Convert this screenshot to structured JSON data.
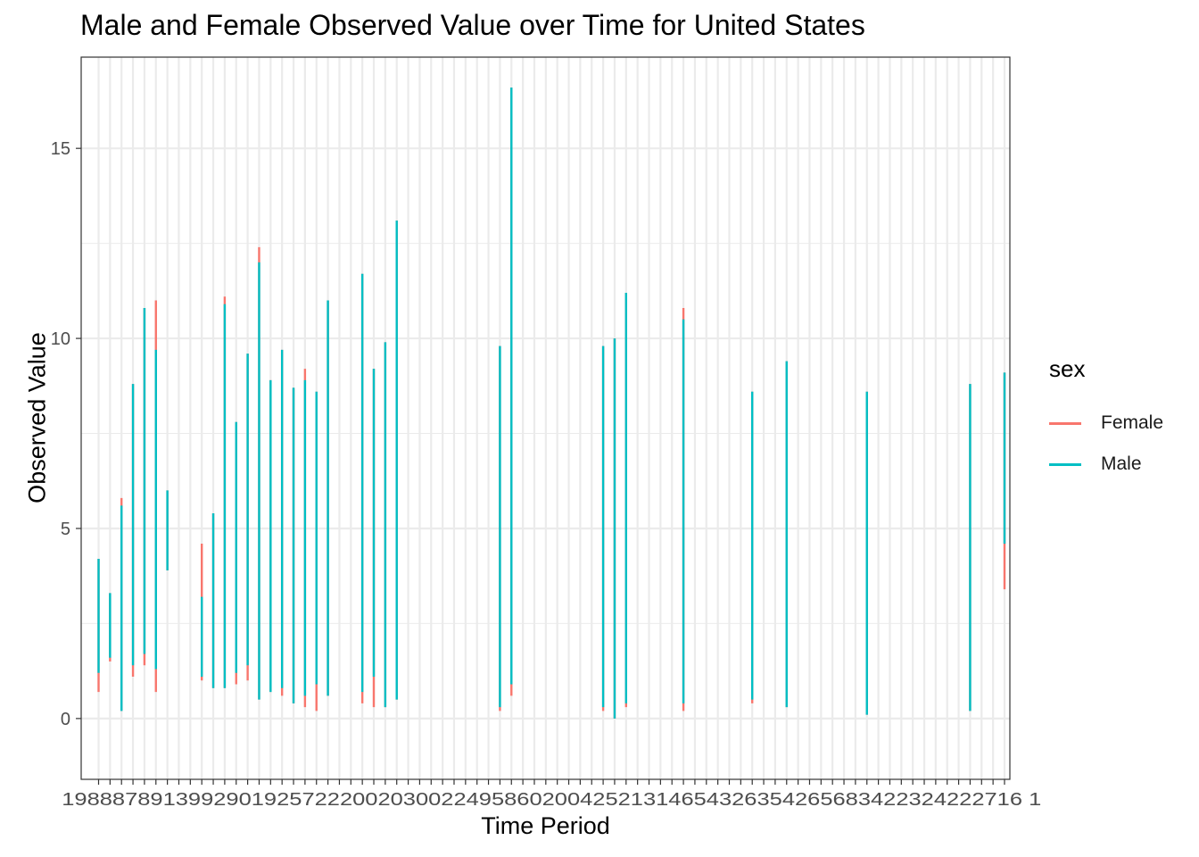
{
  "chart_data": {
    "type": "line",
    "title": "Male and Female Observed Value over Time for United States",
    "xlabel": "Time Period",
    "ylabel": "Observed Value",
    "legend": {
      "title": "sex",
      "position": "right"
    },
    "grid": true,
    "ylim": [
      -1.6,
      17.4
    ],
    "y_ticks": [
      0,
      5,
      10,
      15
    ],
    "x_tick_count": 80,
    "x_tick_label_text": "1988878913992901925722200203002249586020042521314654326354265683422324222716 1",
    "series": [
      {
        "name": "Female",
        "color": "#F8766D",
        "segments": [
          {
            "i": 1,
            "y": [
              0.7,
              4.2
            ]
          },
          {
            "i": 2,
            "y": [
              1.5,
              3.3
            ]
          },
          {
            "i": 3,
            "y": [
              0.2,
              5.8
            ]
          },
          {
            "i": 4,
            "y": [
              1.1,
              8.8
            ]
          },
          {
            "i": 5,
            "y": [
              1.4,
              10.8
            ]
          },
          {
            "i": 6,
            "y": [
              0.7,
              11.0
            ]
          },
          {
            "i": 7,
            "y": [
              3.9,
              6.0
            ]
          },
          {
            "i": 10,
            "y": [
              1.0,
              4.6
            ]
          },
          {
            "i": 11,
            "y": [
              0.8,
              5.4
            ]
          },
          {
            "i": 12,
            "y": [
              0.8,
              11.1
            ]
          },
          {
            "i": 13,
            "y": [
              0.9,
              7.8
            ]
          },
          {
            "i": 14,
            "y": [
              1.0,
              9.6
            ]
          },
          {
            "i": 15,
            "y": [
              0.5,
              12.4
            ]
          },
          {
            "i": 16,
            "y": [
              0.7,
              8.9
            ]
          },
          {
            "i": 17,
            "y": [
              0.6,
              9.7
            ]
          },
          {
            "i": 18,
            "y": [
              0.4,
              8.7
            ]
          },
          {
            "i": 19,
            "y": [
              0.3,
              9.2
            ]
          },
          {
            "i": 20,
            "y": [
              0.2,
              8.6
            ]
          },
          {
            "i": 21,
            "y": [
              0.6,
              11.0
            ]
          },
          {
            "i": 24,
            "y": [
              0.4,
              11.7
            ]
          },
          {
            "i": 25,
            "y": [
              0.3,
              9.2
            ]
          },
          {
            "i": 26,
            "y": [
              0.3,
              9.9
            ]
          },
          {
            "i": 27,
            "y": [
              0.5,
              13.1
            ]
          },
          {
            "i": 36,
            "y": [
              0.2,
              9.8
            ]
          },
          {
            "i": 37,
            "y": [
              0.6,
              16.6
            ]
          },
          {
            "i": 45,
            "y": [
              0.2,
              9.8
            ]
          },
          {
            "i": 46,
            "y": [
              0.0,
              10.0
            ]
          },
          {
            "i": 47,
            "y": [
              0.3,
              11.2
            ]
          },
          {
            "i": 52,
            "y": [
              0.2,
              10.8
            ]
          },
          {
            "i": 58,
            "y": [
              0.4,
              8.6
            ]
          },
          {
            "i": 61,
            "y": [
              0.3,
              9.4
            ]
          },
          {
            "i": 68,
            "y": [
              0.1,
              8.6
            ]
          },
          {
            "i": 77,
            "y": [
              0.2,
              8.8
            ]
          },
          {
            "i": 80,
            "y": [
              3.4,
              9.1
            ]
          }
        ]
      },
      {
        "name": "Male",
        "color": "#00BFC4",
        "segments": [
          {
            "i": 1,
            "y": [
              1.2,
              4.2
            ]
          },
          {
            "i": 2,
            "y": [
              1.6,
              3.3
            ]
          },
          {
            "i": 3,
            "y": [
              0.2,
              5.6
            ]
          },
          {
            "i": 4,
            "y": [
              1.4,
              8.8
            ]
          },
          {
            "i": 5,
            "y": [
              1.7,
              10.8
            ]
          },
          {
            "i": 6,
            "y": [
              1.3,
              9.7
            ]
          },
          {
            "i": 7,
            "y": [
              3.9,
              6.0
            ]
          },
          {
            "i": 10,
            "y": [
              1.1,
              3.2
            ]
          },
          {
            "i": 11,
            "y": [
              0.8,
              5.4
            ]
          },
          {
            "i": 12,
            "y": [
              0.8,
              10.9
            ]
          },
          {
            "i": 13,
            "y": [
              1.2,
              7.8
            ]
          },
          {
            "i": 14,
            "y": [
              1.4,
              9.6
            ]
          },
          {
            "i": 15,
            "y": [
              0.5,
              12.0
            ]
          },
          {
            "i": 16,
            "y": [
              0.7,
              8.9
            ]
          },
          {
            "i": 17,
            "y": [
              0.8,
              9.7
            ]
          },
          {
            "i": 18,
            "y": [
              0.4,
              8.7
            ]
          },
          {
            "i": 19,
            "y": [
              0.6,
              8.9
            ]
          },
          {
            "i": 20,
            "y": [
              0.9,
              8.6
            ]
          },
          {
            "i": 21,
            "y": [
              0.6,
              11.0
            ]
          },
          {
            "i": 24,
            "y": [
              0.7,
              11.7
            ]
          },
          {
            "i": 25,
            "y": [
              1.1,
              9.2
            ]
          },
          {
            "i": 26,
            "y": [
              0.3,
              9.9
            ]
          },
          {
            "i": 27,
            "y": [
              0.5,
              13.1
            ]
          },
          {
            "i": 36,
            "y": [
              0.3,
              9.8
            ]
          },
          {
            "i": 37,
            "y": [
              0.9,
              16.6
            ]
          },
          {
            "i": 45,
            "y": [
              0.3,
              9.8
            ]
          },
          {
            "i": 46,
            "y": [
              0.0,
              10.0
            ]
          },
          {
            "i": 47,
            "y": [
              0.4,
              11.2
            ]
          },
          {
            "i": 52,
            "y": [
              0.4,
              10.5
            ]
          },
          {
            "i": 58,
            "y": [
              0.5,
              8.6
            ]
          },
          {
            "i": 61,
            "y": [
              0.3,
              9.4
            ]
          },
          {
            "i": 68,
            "y": [
              0.1,
              8.6
            ]
          },
          {
            "i": 77,
            "y": [
              0.2,
              8.8
            ]
          },
          {
            "i": 80,
            "y": [
              4.6,
              9.1
            ]
          }
        ]
      }
    ]
  }
}
